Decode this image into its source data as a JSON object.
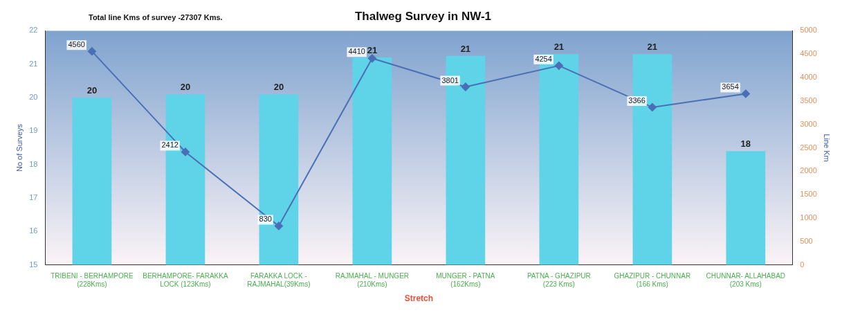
{
  "chart_data": {
    "type": "bar",
    "title": "Thalweg Survey in NW-1",
    "xlabel": "Stretch",
    "ylabel": "No of Surveys",
    "y2label": "Line Km",
    "annotations": [
      "Total line Kms of survey -27307 Kms."
    ],
    "categories": [
      "TRIBENI - BERHAMPORE (228Kms)",
      "BERHAMPORE- FARAKKA LOCK (123Kms)",
      "FARAKKA LOCK - RAJMAHAL(39Kms)",
      "RAJMAHAL - MUNGER (210Kms)",
      "MUNGER - PATNA (162Kms)",
      "PATNA - GHAZIPUR (223 Kms)",
      "GHAZIPUR - CHUNNAR (166 Kms)",
      "CHUNNAR- ALLAHABAD (203 Kms)"
    ],
    "series": [
      {
        "color": "#5fd3e8",
        "values": [
          20.0,
          20.1,
          20.1,
          21.2,
          21.25,
          21.3,
          21.3,
          18.4
        ],
        "value_labels": [
          "20",
          "20",
          "20",
          "21",
          "21",
          "21",
          "21",
          "18"
        ]
      },
      {
        "type": "line",
        "axis": "y2",
        "color": "#4a6fb5",
        "marker": "diamond",
        "data_labels": true,
        "values": [
          4560,
          2412,
          830,
          4410,
          3801,
          4254,
          3366,
          3654
        ]
      }
    ],
    "ylim": [
      15,
      22
    ],
    "yticks": [
      15,
      16,
      17,
      18,
      19,
      20,
      21,
      22
    ],
    "y2lim": [
      0,
      5000
    ],
    "y2ticks": [
      0,
      500,
      1000,
      1500,
      2000,
      2500,
      3000,
      3500,
      4000,
      4500,
      5000
    ],
    "grid": false,
    "legend": false
  }
}
